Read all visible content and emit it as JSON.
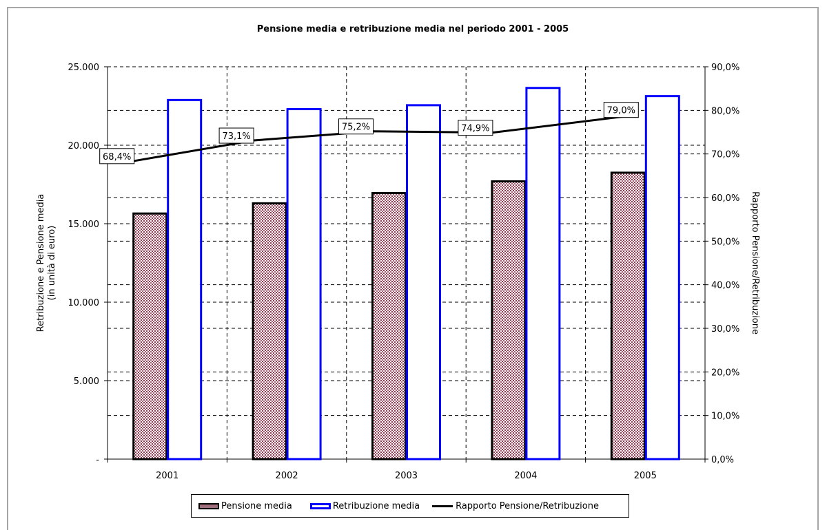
{
  "chart_data": {
    "type": "bar",
    "title": "Pensione media e retribuzione media nel periodo 2001 - 2005",
    "categories": [
      "2001",
      "2002",
      "2003",
      "2004",
      "2005"
    ],
    "series": [
      {
        "name": "Pensione media",
        "kind": "bar",
        "axis": "left",
        "values": [
          15650,
          16300,
          16950,
          17700,
          18250
        ]
      },
      {
        "name": "Retribuzione media",
        "kind": "bar",
        "axis": "left",
        "values": [
          22880,
          22300,
          22550,
          23650,
          23130
        ]
      },
      {
        "name": "Rapporto Pensione/Retribuzione",
        "kind": "line",
        "axis": "right",
        "values": [
          68.4,
          73.1,
          75.2,
          74.9,
          79.0
        ],
        "labels": [
          "68,4%",
          "73,1%",
          "75,2%",
          "74,9%",
          "79,0%"
        ]
      }
    ],
    "ylabel_left": [
      "Retribuzione e Pensione media",
      "(in unità di euro)"
    ],
    "ylabel_right": "Rapporto Pensione/Retribuzione",
    "ylim_left": [
      0,
      25000
    ],
    "ylim_right": [
      0,
      90
    ],
    "yticks_left": [
      "-",
      "5.000",
      "10.000",
      "15.000",
      "20.000",
      "25.000"
    ],
    "yticks_right": [
      "0,0%",
      "10,0%",
      "20,0%",
      "30,0%",
      "40,0%",
      "50,0%",
      "60,0%",
      "70,0%",
      "80,0%",
      "90,0%"
    ],
    "grid": true,
    "legend_position": "bottom",
    "colors": {
      "pension_fill": "#a06f7e",
      "salary_border": "#0000ff",
      "line": "#000000",
      "frame": "#a6a6a6"
    }
  }
}
